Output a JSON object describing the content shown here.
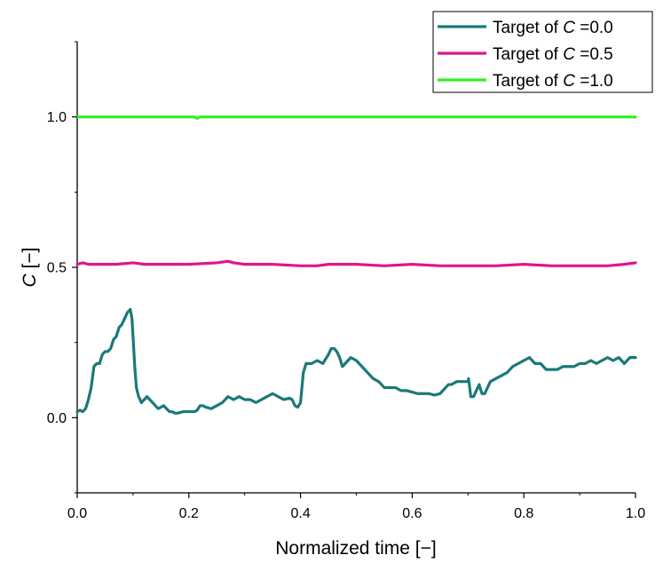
{
  "chart_data": {
    "type": "line",
    "xlabel": "Normalized time [−]",
    "ylabel": {
      "symbol": "C",
      "unit": " [−]"
    },
    "xlim": [
      0.0,
      1.0
    ],
    "ylim": [
      -0.25,
      1.25
    ],
    "x_ticks": [
      "0.0",
      "0.2",
      "0.4",
      "0.6",
      "0.8",
      "1.0"
    ],
    "y_ticks": [
      "0.0",
      "0.5",
      "1.0"
    ],
    "y_tick_values": [
      0.0,
      0.5,
      1.0
    ],
    "legend_position": "top-right",
    "series": [
      {
        "name": "Target of C =0.0",
        "legend": {
          "prefix": "Target of ",
          "symbol": "C",
          "suffix": " =0.0"
        },
        "color": "#1a7a78",
        "x": [
          0.0,
          0.005,
          0.01,
          0.015,
          0.02,
          0.025,
          0.03,
          0.035,
          0.04,
          0.045,
          0.05,
          0.055,
          0.06,
          0.065,
          0.07,
          0.075,
          0.08,
          0.085,
          0.09,
          0.095,
          0.098,
          0.1,
          0.103,
          0.106,
          0.11,
          0.115,
          0.12,
          0.125,
          0.13,
          0.135,
          0.14,
          0.145,
          0.15,
          0.155,
          0.16,
          0.165,
          0.17,
          0.175,
          0.18,
          0.19,
          0.2,
          0.21,
          0.215,
          0.22,
          0.225,
          0.23,
          0.24,
          0.25,
          0.26,
          0.27,
          0.28,
          0.29,
          0.3,
          0.31,
          0.32,
          0.33,
          0.34,
          0.35,
          0.36,
          0.37,
          0.38,
          0.385,
          0.39,
          0.395,
          0.4,
          0.405,
          0.41,
          0.42,
          0.43,
          0.44,
          0.45,
          0.455,
          0.46,
          0.465,
          0.47,
          0.475,
          0.48,
          0.49,
          0.5,
          0.51,
          0.52,
          0.53,
          0.54,
          0.55,
          0.56,
          0.57,
          0.58,
          0.59,
          0.6,
          0.61,
          0.62,
          0.63,
          0.64,
          0.65,
          0.66,
          0.665,
          0.67,
          0.68,
          0.69,
          0.7,
          0.701,
          0.705,
          0.71,
          0.715,
          0.72,
          0.725,
          0.73,
          0.735,
          0.74,
          0.75,
          0.76,
          0.77,
          0.78,
          0.79,
          0.8,
          0.81,
          0.82,
          0.83,
          0.84,
          0.85,
          0.86,
          0.87,
          0.88,
          0.89,
          0.9,
          0.91,
          0.92,
          0.93,
          0.94,
          0.95,
          0.96,
          0.97,
          0.98,
          0.99,
          1.0
        ],
        "y": [
          0.02,
          0.025,
          0.02,
          0.03,
          0.06,
          0.1,
          0.17,
          0.18,
          0.18,
          0.21,
          0.22,
          0.22,
          0.23,
          0.26,
          0.27,
          0.3,
          0.31,
          0.33,
          0.35,
          0.36,
          0.33,
          0.27,
          0.17,
          0.1,
          0.07,
          0.05,
          0.06,
          0.07,
          0.06,
          0.05,
          0.04,
          0.03,
          0.035,
          0.04,
          0.03,
          0.02,
          0.02,
          0.015,
          0.015,
          0.02,
          0.02,
          0.02,
          0.025,
          0.04,
          0.04,
          0.035,
          0.03,
          0.04,
          0.05,
          0.07,
          0.06,
          0.07,
          0.06,
          0.06,
          0.05,
          0.06,
          0.07,
          0.08,
          0.07,
          0.06,
          0.065,
          0.06,
          0.04,
          0.035,
          0.05,
          0.15,
          0.18,
          0.18,
          0.19,
          0.18,
          0.21,
          0.23,
          0.23,
          0.22,
          0.2,
          0.17,
          0.18,
          0.2,
          0.19,
          0.17,
          0.15,
          0.13,
          0.12,
          0.1,
          0.1,
          0.1,
          0.09,
          0.09,
          0.085,
          0.08,
          0.08,
          0.08,
          0.075,
          0.08,
          0.1,
          0.11,
          0.11,
          0.12,
          0.12,
          0.12,
          0.13,
          0.07,
          0.07,
          0.09,
          0.11,
          0.08,
          0.08,
          0.1,
          0.12,
          0.13,
          0.14,
          0.15,
          0.17,
          0.18,
          0.19,
          0.2,
          0.18,
          0.18,
          0.16,
          0.16,
          0.16,
          0.17,
          0.17,
          0.17,
          0.18,
          0.18,
          0.19,
          0.18,
          0.19,
          0.2,
          0.19,
          0.2,
          0.18,
          0.2,
          0.2
        ]
      },
      {
        "name": "Target of C =0.5",
        "legend": {
          "prefix": "Target of ",
          "symbol": "C",
          "suffix": " =0.5"
        },
        "color": "#e0158c",
        "x": [
          0.0,
          0.01,
          0.02,
          0.03,
          0.05,
          0.07,
          0.1,
          0.12,
          0.15,
          0.2,
          0.25,
          0.27,
          0.28,
          0.3,
          0.35,
          0.4,
          0.43,
          0.45,
          0.5,
          0.55,
          0.6,
          0.65,
          0.7,
          0.75,
          0.8,
          0.85,
          0.9,
          0.95,
          0.98,
          1.0
        ],
        "y": [
          0.51,
          0.515,
          0.51,
          0.51,
          0.51,
          0.51,
          0.515,
          0.51,
          0.51,
          0.51,
          0.515,
          0.52,
          0.515,
          0.51,
          0.51,
          0.505,
          0.505,
          0.51,
          0.51,
          0.505,
          0.51,
          0.505,
          0.505,
          0.505,
          0.51,
          0.505,
          0.505,
          0.505,
          0.51,
          0.515
        ]
      },
      {
        "name": "Target of C =1.0",
        "legend": {
          "prefix": "Target of ",
          "symbol": "C",
          "suffix": " =1.0"
        },
        "color": "#33ee22",
        "x": [
          0.0,
          0.1,
          0.2,
          0.21,
          0.215,
          0.22,
          0.3,
          0.4,
          0.5,
          0.6,
          0.7,
          0.8,
          0.9,
          1.0
        ],
        "y": [
          1.0,
          1.0,
          1.0,
          1.0,
          0.995,
          1.0,
          1.0,
          1.0,
          1.0,
          1.0,
          1.0,
          1.0,
          1.0,
          1.0
        ]
      }
    ]
  }
}
